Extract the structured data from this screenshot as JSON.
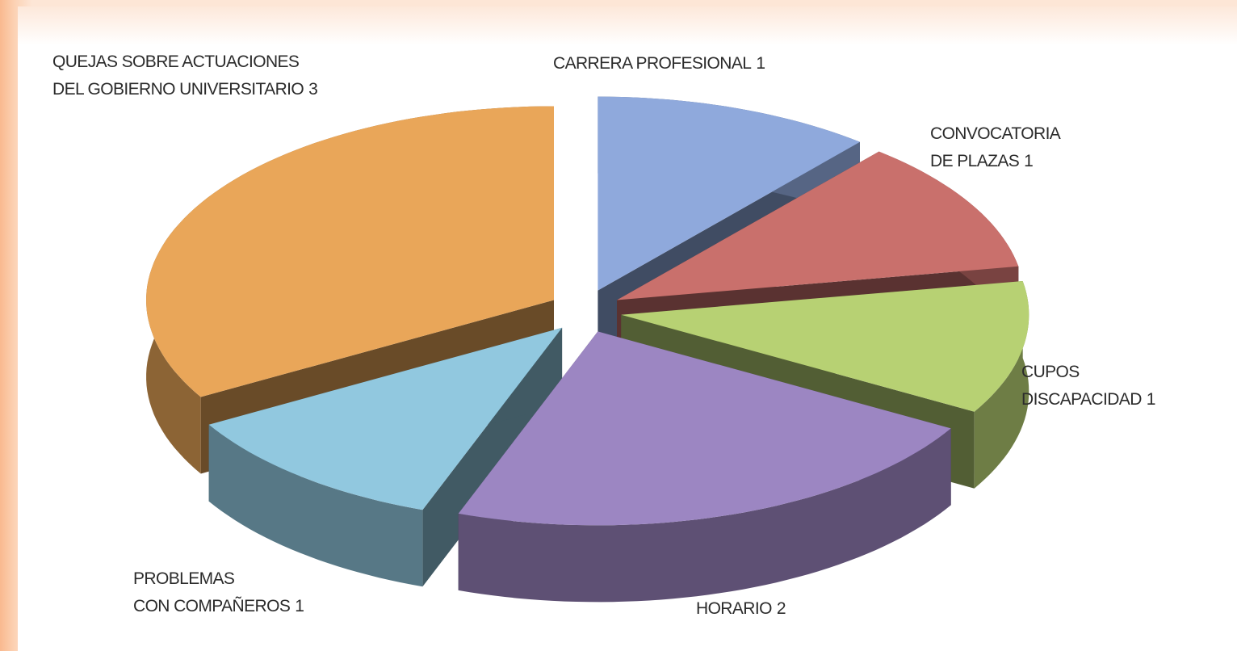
{
  "chart_data": {
    "type": "pie3d",
    "categories": [
      [
        "CARRERA PROFESIONAL"
      ],
      [
        "CONVOCATORIA",
        "DE PLAZAS"
      ],
      [
        "CUPOS",
        "DISCAPACIDAD"
      ],
      [
        "HORARIO"
      ],
      [
        "PROBLEMAS",
        "CON COMPAÑEROS"
      ],
      [
        "QUEJAS SOBRE ACTUACIONES",
        "DEL GOBIERNO UNIVERSITARIO"
      ]
    ],
    "values": [
      1,
      1,
      1,
      2,
      1,
      3
    ],
    "colors": [
      "#8fa9dc",
      "#c9706c",
      "#b7d173",
      "#9c86c2",
      "#91c8df",
      "#e9a659"
    ]
  }
}
